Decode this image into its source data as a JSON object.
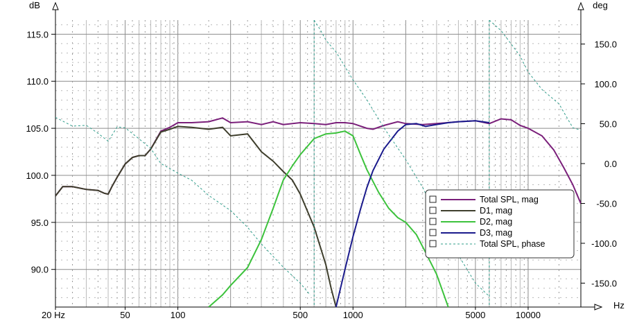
{
  "chart_data": {
    "type": "line",
    "x_scale": "log",
    "x_unit": "Hz",
    "x_ticks": [
      "20 Hz",
      "50",
      "100",
      "500",
      "1000",
      "5000",
      "10000"
    ],
    "x_tick_values": [
      20,
      50,
      100,
      500,
      1000,
      5000,
      10000
    ],
    "xlim": [
      20,
      20000
    ],
    "y_left_unit": "dB",
    "y_left_ticks": [
      "115.0",
      "110.0",
      "105.0",
      "100.0",
      "95.0",
      "90.0"
    ],
    "y_left_tick_values": [
      115,
      110,
      105,
      100,
      95,
      90
    ],
    "ylim_left": [
      86,
      116.5
    ],
    "y_right_unit": "deg",
    "y_right_ticks": [
      "150.0",
      "100.0",
      "50.0",
      "0.0",
      "-50.0",
      "-100.0",
      "-150.0"
    ],
    "y_right_tick_values": [
      150,
      100,
      50,
      0,
      -50,
      -100,
      -150
    ],
    "ylim_right": [
      -180,
      180
    ],
    "grid": true,
    "legend_position": "right",
    "series": [
      {
        "name": "Total SPL, mag",
        "axis": "left",
        "color": "#7a1f7a",
        "style": "solid",
        "x": [
          20,
          22,
          25,
          30,
          35,
          38,
          40,
          42,
          45,
          50,
          55,
          60,
          65,
          70,
          80,
          90,
          100,
          120,
          150,
          180,
          200,
          250,
          300,
          350,
          400,
          500,
          600,
          700,
          800,
          900,
          1000,
          1200,
          1300,
          1500,
          1800,
          2000,
          2500,
          3000,
          4000,
          5000,
          6000,
          7000,
          8000,
          9000,
          10000,
          12000,
          14000,
          16000,
          18000,
          20000
        ],
        "y": [
          97.8,
          98.8,
          98.8,
          98.5,
          98.4,
          98.1,
          98.0,
          98.8,
          99.8,
          101.2,
          101.9,
          102.1,
          102.1,
          102.8,
          104.7,
          105.1,
          105.6,
          105.6,
          105.7,
          106.1,
          105.6,
          105.7,
          105.4,
          105.7,
          105.4,
          105.6,
          105.5,
          105.4,
          105.6,
          105.6,
          105.5,
          105.0,
          104.9,
          105.3,
          105.7,
          105.5,
          105.4,
          105.5,
          105.7,
          105.8,
          105.5,
          106.0,
          105.9,
          105.3,
          105.0,
          104.2,
          102.7,
          100.8,
          99.0,
          97.0
        ]
      },
      {
        "name": "D1, mag",
        "axis": "left",
        "color": "#3e3e2c",
        "style": "solid",
        "x": [
          20,
          22,
          25,
          30,
          35,
          38,
          40,
          42,
          45,
          50,
          55,
          60,
          65,
          70,
          80,
          90,
          100,
          120,
          150,
          180,
          200,
          250,
          300,
          350,
          400,
          450,
          500,
          600,
          700,
          750,
          800
        ],
        "y": [
          97.8,
          98.8,
          98.8,
          98.5,
          98.4,
          98.1,
          98.0,
          98.8,
          99.8,
          101.2,
          101.9,
          102.1,
          102.1,
          102.8,
          104.6,
          104.9,
          105.2,
          105.1,
          104.9,
          105.1,
          104.2,
          104.4,
          102.5,
          101.5,
          100.4,
          99.5,
          98.0,
          94.5,
          90.5,
          88.0,
          86.0
        ]
      },
      {
        "name": "D2, mag",
        "axis": "left",
        "color": "#3cc23c",
        "style": "solid",
        "x": [
          150,
          180,
          200,
          250,
          300,
          350,
          400,
          450,
          500,
          600,
          700,
          800,
          900,
          1000,
          1100,
          1200,
          1400,
          1600,
          1800,
          2000,
          2300,
          2600,
          3000,
          3500
        ],
        "y": [
          86.0,
          87.3,
          88.3,
          90.2,
          93.2,
          96.5,
          99.5,
          101.0,
          102.2,
          103.9,
          104.4,
          104.5,
          104.7,
          104.2,
          102.3,
          100.6,
          98.2,
          96.5,
          95.5,
          95.0,
          93.7,
          91.8,
          89.5,
          86.0
        ]
      },
      {
        "name": "D3, mag",
        "axis": "left",
        "color": "#1a1a8c",
        "style": "solid",
        "x": [
          800,
          900,
          1000,
          1100,
          1200,
          1300,
          1500,
          1800,
          2000,
          2300,
          2600,
          3000,
          3500,
          4000,
          5000,
          6000
        ],
        "y": [
          86.0,
          90.0,
          93.5,
          96.3,
          98.7,
          100.5,
          102.8,
          104.7,
          105.4,
          105.5,
          105.2,
          105.4,
          105.6,
          105.7,
          105.8,
          105.6
        ]
      },
      {
        "name": "Total SPL, phase",
        "axis": "right",
        "color": "#2e9c8a",
        "style": "dashed",
        "x": [
          20,
          25,
          30,
          35,
          40,
          45,
          50,
          60,
          70,
          80,
          100,
          120,
          150,
          200,
          250,
          300,
          400,
          500,
          570,
          600,
          650,
          700,
          800,
          1000,
          1200,
          1500,
          2000,
          2500,
          3000,
          4000,
          5000,
          5900,
          6000,
          7000,
          8000,
          9000,
          10000,
          12000,
          15000,
          18000,
          20000
        ],
        "y": [
          58,
          47,
          48,
          38,
          28,
          46,
          45,
          31,
          19,
          0,
          -12,
          -21,
          -40,
          -59,
          -80,
          -101,
          -130,
          -150,
          -165,
          180,
          168,
          155,
          140,
          105,
          80,
          45,
          5,
          -30,
          -65,
          -115,
          -150,
          -165,
          180,
          167,
          150,
          135,
          115,
          93,
          75,
          45,
          42
        ]
      }
    ]
  }
}
